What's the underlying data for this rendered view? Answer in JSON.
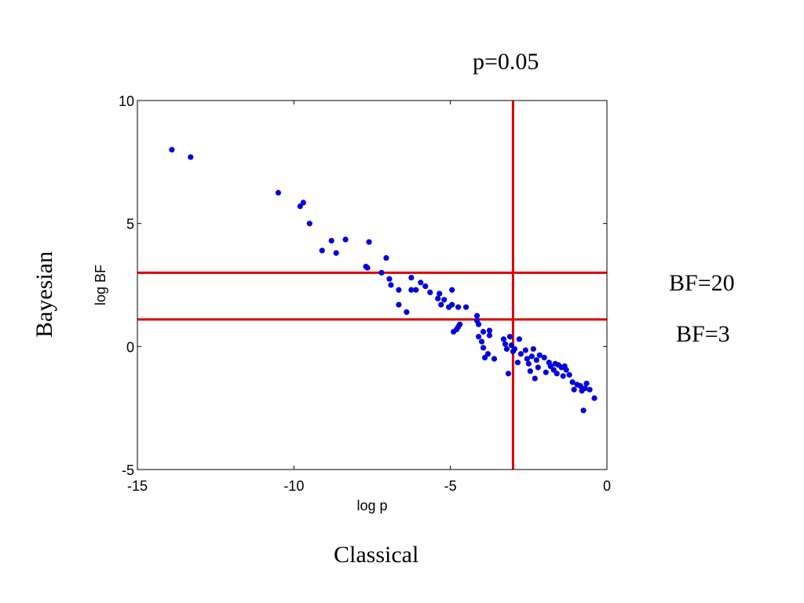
{
  "slide": {
    "top_annotation": "p=0.05",
    "right_annotation_upper": "BF=20",
    "right_annotation_lower": "BF=3",
    "bottom_caption": "Classical",
    "left_caption": "Bayesian"
  },
  "chart_data": {
    "type": "scatter",
    "xlabel": "log p",
    "ylabel": "log BF",
    "xlim": [
      -15,
      0
    ],
    "ylim": [
      -5,
      10
    ],
    "xticks": [
      -15,
      -10,
      -5,
      0
    ],
    "yticks": [
      -5,
      0,
      5,
      10
    ],
    "xtick_labels": [
      "-15",
      "-10",
      "-5",
      "0"
    ],
    "ytick_labels": [
      "-5",
      "0",
      "5",
      "10"
    ],
    "grid": false,
    "marker_color": "#0000dd",
    "reference_lines": {
      "color": "#dd0000",
      "vertical_x": [
        -3.0
      ],
      "horizontal_y": [
        3.0,
        1.1
      ]
    },
    "points": [
      [
        -13.9,
        8.0
      ],
      [
        -13.3,
        7.7
      ],
      [
        -10.5,
        6.25
      ],
      [
        -9.8,
        5.7
      ],
      [
        -9.7,
        5.85
      ],
      [
        -9.5,
        5.0
      ],
      [
        -9.1,
        3.9
      ],
      [
        -8.8,
        4.3
      ],
      [
        -8.65,
        3.8
      ],
      [
        -8.35,
        4.35
      ],
      [
        -7.65,
        3.2
      ],
      [
        -7.6,
        4.25
      ],
      [
        -7.7,
        3.25
      ],
      [
        -7.05,
        3.6
      ],
      [
        -7.2,
        3.0
      ],
      [
        -6.95,
        2.75
      ],
      [
        -6.9,
        2.5
      ],
      [
        -6.65,
        2.3
      ],
      [
        -6.65,
        1.7
      ],
      [
        -6.4,
        1.4
      ],
      [
        -6.25,
        2.8
      ],
      [
        -6.25,
        2.3
      ],
      [
        -6.1,
        2.3
      ],
      [
        -5.95,
        2.6
      ],
      [
        -5.8,
        2.45
      ],
      [
        -5.65,
        2.2
      ],
      [
        -5.4,
        1.95
      ],
      [
        -5.35,
        2.15
      ],
      [
        -5.3,
        1.7
      ],
      [
        -5.2,
        1.9
      ],
      [
        -5.05,
        1.6
      ],
      [
        -4.95,
        2.3
      ],
      [
        -4.95,
        1.7
      ],
      [
        -4.9,
        0.6
      ],
      [
        -4.8,
        0.7
      ],
      [
        -4.75,
        1.6
      ],
      [
        -4.75,
        0.8
      ],
      [
        -4.7,
        0.9
      ],
      [
        -4.5,
        1.6
      ],
      [
        -4.15,
        1.25
      ],
      [
        -4.15,
        1.05
      ],
      [
        -4.1,
        0.9
      ],
      [
        -4.1,
        0.4
      ],
      [
        -4.0,
        0.2
      ],
      [
        -3.95,
        0.6
      ],
      [
        -3.95,
        -0.05
      ],
      [
        -3.9,
        -0.45
      ],
      [
        -3.8,
        -0.3
      ],
      [
        -3.75,
        0.65
      ],
      [
        -3.75,
        0.45
      ],
      [
        -3.6,
        -0.5
      ],
      [
        -3.3,
        0.3
      ],
      [
        -3.25,
        0.1
      ],
      [
        -3.2,
        -0.1
      ],
      [
        -3.15,
        -1.1
      ],
      [
        -3.1,
        0.4
      ],
      [
        -3.05,
        0.05
      ],
      [
        -3.0,
        -0.2
      ],
      [
        -2.95,
        -0.1
      ],
      [
        -2.85,
        -0.65
      ],
      [
        -2.8,
        0.3
      ],
      [
        -2.75,
        -0.3
      ],
      [
        -2.6,
        -0.15
      ],
      [
        -2.55,
        -0.5
      ],
      [
        -2.5,
        -0.7
      ],
      [
        -2.45,
        -1.0
      ],
      [
        -2.4,
        -0.4
      ],
      [
        -2.35,
        -0.1
      ],
      [
        -2.3,
        -1.3
      ],
      [
        -2.25,
        -0.55
      ],
      [
        -2.2,
        -0.85
      ],
      [
        -2.15,
        -0.35
      ],
      [
        -2.0,
        -0.45
      ],
      [
        -1.95,
        -1.05
      ],
      [
        -1.85,
        -0.65
      ],
      [
        -1.8,
        -0.8
      ],
      [
        -1.7,
        -0.95
      ],
      [
        -1.65,
        -0.7
      ],
      [
        -1.6,
        -1.1
      ],
      [
        -1.55,
        -0.75
      ],
      [
        -1.45,
        -0.85
      ],
      [
        -1.4,
        -1.2
      ],
      [
        -1.35,
        -0.8
      ],
      [
        -1.3,
        -0.95
      ],
      [
        -1.2,
        -1.15
      ],
      [
        -1.1,
        -1.45
      ],
      [
        -1.05,
        -1.75
      ],
      [
        -0.95,
        -1.55
      ],
      [
        -0.85,
        -1.6
      ],
      [
        -0.8,
        -1.8
      ],
      [
        -0.75,
        -2.6
      ],
      [
        -0.7,
        -1.7
      ],
      [
        -0.65,
        -1.5
      ],
      [
        -0.55,
        -1.75
      ],
      [
        -0.4,
        -2.1
      ]
    ]
  }
}
